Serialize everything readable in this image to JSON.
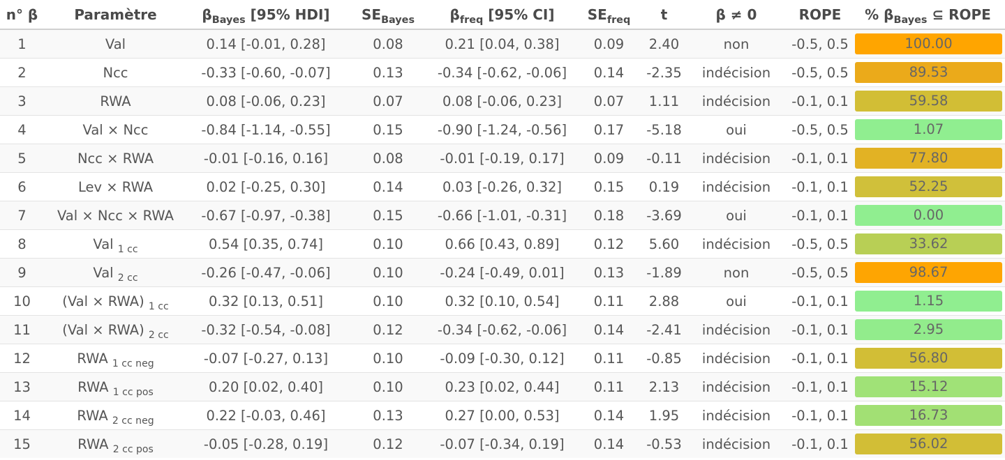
{
  "header": {
    "n": {
      "main": "n° β"
    },
    "param": {
      "main": "Paramètre"
    },
    "beta_bayes": {
      "pre": "β",
      "sub": "Bayes",
      "post": " [95% HDI]"
    },
    "se_bayes": {
      "pre": "SE",
      "sub": "Bayes",
      "post": ""
    },
    "beta_freq": {
      "pre": "β",
      "sub": "freq",
      "post": " [95% CI]"
    },
    "se_freq": {
      "pre": "SE",
      "sub": "freq",
      "post": ""
    },
    "t": {
      "main": "t"
    },
    "beta_ne0": {
      "main": "β ≠ 0"
    },
    "rope": {
      "main": "ROPE"
    },
    "pct_rope": {
      "pre": "% β",
      "sub": "Bayes",
      "post": " ⊆ ROPE"
    }
  },
  "rows": [
    {
      "n": "1",
      "param": "Val",
      "param_sub": "",
      "bayes": "0.14 [-0.01, 0.28]",
      "se_bayes": "0.08",
      "freq": "0.21 [0.04, 0.38]",
      "se_freq": "0.09",
      "t": "2.40",
      "decision": "non",
      "rope": "-0.5, 0.5",
      "pct": "100.00",
      "pct_value": 100.0,
      "color": "#FFA500"
    },
    {
      "n": "2",
      "param": "Ncc",
      "param_sub": "",
      "bayes": "-0.33 [-0.60, -0.07]",
      "se_bayes": "0.13",
      "freq": "-0.34 [-0.62, -0.06]",
      "se_freq": "0.14",
      "t": "-2.35",
      "decision": "indécision",
      "rope": "-0.5, 0.5",
      "pct": "89.53",
      "pct_value": 89.53,
      "color": "#EBAA1A"
    },
    {
      "n": "3",
      "param": "RWA",
      "param_sub": "",
      "bayes": "0.08 [-0.06, 0.23]",
      "se_bayes": "0.07",
      "freq": "0.08 [-0.06, 0.23]",
      "se_freq": "0.07",
      "t": "1.11",
      "decision": "indécision",
      "rope": "-0.1, 0.1",
      "pct": "59.58",
      "pct_value": 59.58,
      "color": "#D2BE35"
    },
    {
      "n": "4",
      "param": "Val × Ncc",
      "param_sub": "",
      "bayes": "-0.84 [-1.14, -0.55]",
      "se_bayes": "0.15",
      "freq": "-0.90 [-1.24, -0.56]",
      "se_freq": "0.17",
      "t": "-5.18",
      "decision": "oui",
      "rope": "-0.5, 0.5",
      "pct": "1.07",
      "pct_value": 1.07,
      "color": "#90EE90"
    },
    {
      "n": "5",
      "param": "Ncc × RWA",
      "param_sub": "",
      "bayes": "-0.01 [-0.16, 0.16]",
      "se_bayes": "0.08",
      "freq": "-0.01 [-0.19, 0.17]",
      "se_freq": "0.09",
      "t": "-0.11",
      "decision": "indécision",
      "rope": "-0.1, 0.1",
      "pct": "77.80",
      "pct_value": 77.8,
      "color": "#E2B224"
    },
    {
      "n": "6",
      "param": "Lev × RWA",
      "param_sub": "",
      "bayes": "0.02 [-0.25, 0.30]",
      "se_bayes": "0.14",
      "freq": "0.03 [-0.26, 0.32]",
      "se_freq": "0.15",
      "t": "0.19",
      "decision": "indécision",
      "rope": "-0.1, 0.1",
      "pct": "52.25",
      "pct_value": 52.25,
      "color": "#D0C03A"
    },
    {
      "n": "7",
      "param": "Val × Ncc × RWA",
      "param_sub": "",
      "bayes": "-0.67 [-0.97, -0.38]",
      "se_bayes": "0.15",
      "freq": "-0.66 [-1.01, -0.31]",
      "se_freq": "0.18",
      "t": "-3.69",
      "decision": "oui",
      "rope": "-0.1, 0.1",
      "pct": "0.00",
      "pct_value": 0.0,
      "color": "#90EE90"
    },
    {
      "n": "8",
      "param": "Val",
      "param_sub": "1 cc",
      "bayes": "0.54 [0.35, 0.74]",
      "se_bayes": "0.10",
      "freq": "0.66 [0.43, 0.89]",
      "se_freq": "0.12",
      "t": "5.60",
      "decision": "indécision",
      "rope": "-0.5, 0.5",
      "pct": "33.62",
      "pct_value": 33.62,
      "color": "#B8CF55"
    },
    {
      "n": "9",
      "param": "Val",
      "param_sub": "2 cc",
      "bayes": "-0.26 [-0.47, -0.06]",
      "se_bayes": "0.10",
      "freq": "-0.24 [-0.49, 0.01]",
      "se_freq": "0.13",
      "t": "-1.89",
      "decision": "non",
      "rope": "-0.5, 0.5",
      "pct": "98.67",
      "pct_value": 98.67,
      "color": "#FEA502"
    },
    {
      "n": "10",
      "param": "(Val × RWA)",
      "param_sub": "1 cc",
      "bayes": "0.32 [0.13, 0.51]",
      "se_bayes": "0.10",
      "freq": "0.32 [0.10, 0.54]",
      "se_freq": "0.11",
      "t": "2.88",
      "decision": "oui",
      "rope": "-0.1, 0.1",
      "pct": "1.15",
      "pct_value": 1.15,
      "color": "#90EE90"
    },
    {
      "n": "11",
      "param": "(Val × RWA)",
      "param_sub": "2 cc",
      "bayes": "-0.32 [-0.54, -0.08]",
      "se_bayes": "0.12",
      "freq": "-0.34 [-0.62, -0.06]",
      "se_freq": "0.14",
      "t": "-2.41",
      "decision": "indécision",
      "rope": "-0.1, 0.1",
      "pct": "2.95",
      "pct_value": 2.95,
      "color": "#92EC8C"
    },
    {
      "n": "12",
      "param": "RWA",
      "param_sub": "1 cc neg",
      "bayes": "-0.07 [-0.27, 0.13]",
      "se_bayes": "0.10",
      "freq": "-0.09 [-0.30, 0.12]",
      "se_freq": "0.11",
      "t": "-0.85",
      "decision": "indécision",
      "rope": "-0.1, 0.1",
      "pct": "56.80",
      "pct_value": 56.8,
      "color": "#D2BE36"
    },
    {
      "n": "13",
      "param": "RWA",
      "param_sub": "1 cc pos",
      "bayes": "0.20 [0.02, 0.40]",
      "se_bayes": "0.10",
      "freq": "0.23 [0.02, 0.44]",
      "se_freq": "0.11",
      "t": "2.13",
      "decision": "indécision",
      "rope": "-0.1, 0.1",
      "pct": "15.12",
      "pct_value": 15.12,
      "color": "#A0E277"
    },
    {
      "n": "14",
      "param": "RWA",
      "param_sub": "2 cc neg",
      "bayes": "0.22 [-0.03, 0.46]",
      "se_bayes": "0.13",
      "freq": "0.27 [0.00, 0.53]",
      "se_freq": "0.14",
      "t": "1.95",
      "decision": "indécision",
      "rope": "-0.1, 0.1",
      "pct": "16.73",
      "pct_value": 16.73,
      "color": "#A2E074"
    },
    {
      "n": "15",
      "param": "RWA",
      "param_sub": "2 cc pos",
      "bayes": "-0.05 [-0.28, 0.19]",
      "se_bayes": "0.12",
      "freq": "-0.07 [-0.34, 0.19]",
      "se_freq": "0.14",
      "t": "-0.53",
      "decision": "indécision",
      "rope": "-0.1, 0.1",
      "pct": "56.02",
      "pct_value": 56.02,
      "color": "#D2BE36"
    }
  ]
}
